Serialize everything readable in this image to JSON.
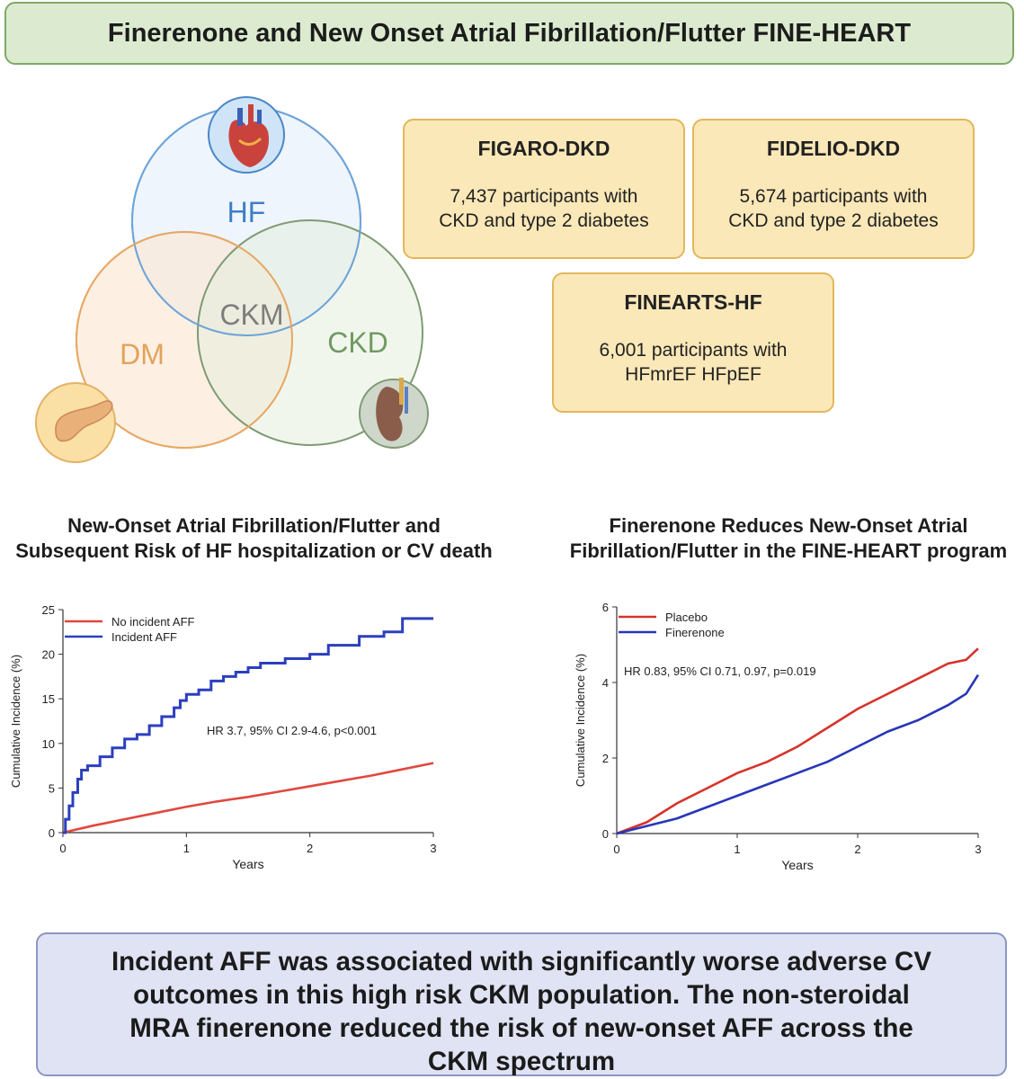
{
  "title": "Finerenone and New Onset Atrial Fibrillation/Flutter FINE-HEART",
  "venn": {
    "labels": {
      "hf": "HF",
      "dm": "DM",
      "ckd": "CKD",
      "ckm": "CKM"
    },
    "colors": {
      "hf": "#3d7fc4",
      "dm": "#e3a25a",
      "ckd": "#6f9a62",
      "ckm": "#7d7d7d"
    },
    "icons": {
      "hf": "heart-icon",
      "dm": "pancreas-icon",
      "ckd": "kidney-icon"
    }
  },
  "trials": [
    {
      "name": "FIGARO-DKD",
      "line1": "7,437 participants with",
      "line2": "CKD and type 2 diabetes"
    },
    {
      "name": "FIDELIO-DKD",
      "line1": "5,674 participants with",
      "line2": "CKD and type 2 diabetes"
    },
    {
      "name": "FINEARTS-HF",
      "line1": "6,001 participants with",
      "line2": "HFmrEF HFpEF"
    }
  ],
  "chart1_title": {
    "line1": "New-Onset Atrial Fibrillation/Flutter and",
    "line2": "Subsequent Risk of HF hospitalization or CV death"
  },
  "chart2_title": {
    "line1": "Finerenone Reduces New-Onset Atrial",
    "line2": "Fibrillation/Flutter in the FINE-HEART program"
  },
  "chart_data": [
    {
      "type": "line",
      "title": "New-Onset Atrial Fibrillation/Flutter and Subsequent Risk of HF hospitalization or CV death",
      "xlabel": "Years",
      "ylabel": "Cumulative Incidence (%)",
      "xlim": [
        0,
        3
      ],
      "ylim": [
        0,
        25
      ],
      "xticks": [
        0,
        1,
        2,
        3
      ],
      "yticks": [
        0,
        5,
        10,
        15,
        20,
        25
      ],
      "legend_position": "top-left",
      "annotation": "HR 3.7, 95% CI 2.9-4.6, p<0.001",
      "series": [
        {
          "name": "No incident AFF",
          "color": "#e0483e",
          "x": [
            0,
            0.25,
            0.5,
            0.75,
            1.0,
            1.25,
            1.5,
            1.75,
            2.0,
            2.25,
            2.5,
            2.75,
            3.0
          ],
          "y": [
            0,
            0.8,
            1.5,
            2.2,
            2.9,
            3.5,
            4.0,
            4.6,
            5.2,
            5.8,
            6.4,
            7.1,
            7.8
          ]
        },
        {
          "name": "Incident AFF",
          "color": "#2b3fbf",
          "step": true,
          "x": [
            0,
            0.02,
            0.05,
            0.08,
            0.12,
            0.15,
            0.2,
            0.3,
            0.4,
            0.5,
            0.6,
            0.7,
            0.8,
            0.9,
            0.95,
            1.0,
            1.1,
            1.2,
            1.3,
            1.4,
            1.5,
            1.6,
            1.8,
            2.0,
            2.15,
            2.4,
            2.6,
            2.75,
            3.0
          ],
          "y": [
            0,
            1.5,
            3.0,
            4.5,
            6.0,
            7.0,
            7.5,
            8.5,
            9.5,
            10.5,
            11.0,
            12.0,
            13.0,
            14.0,
            14.8,
            15.5,
            16.0,
            17.0,
            17.5,
            18.0,
            18.5,
            19.0,
            19.5,
            20.0,
            21.0,
            22.0,
            22.5,
            24.0,
            24.0
          ]
        }
      ]
    },
    {
      "type": "line",
      "title": "Finerenone Reduces New-Onset Atrial Fibrillation/Flutter in the FINE-HEART program",
      "xlabel": "Years",
      "ylabel": "Cumulative Incidence (%)",
      "xlim": [
        0,
        3
      ],
      "ylim": [
        0,
        6
      ],
      "xticks": [
        0,
        1,
        2,
        3
      ],
      "yticks": [
        0,
        2,
        4,
        6
      ],
      "legend_position": "top-left",
      "annotation": "HR 0.83, 95% CI 0.71, 0.97, p=0.019",
      "series": [
        {
          "name": "Placebo",
          "color": "#d6332b",
          "x": [
            0,
            0.25,
            0.5,
            0.75,
            1.0,
            1.25,
            1.5,
            1.75,
            2.0,
            2.25,
            2.5,
            2.75,
            2.9,
            3.0
          ],
          "y": [
            0,
            0.3,
            0.8,
            1.2,
            1.6,
            1.9,
            2.3,
            2.8,
            3.3,
            3.7,
            4.1,
            4.5,
            4.6,
            4.9
          ]
        },
        {
          "name": "Finerenone",
          "color": "#2736b8",
          "x": [
            0,
            0.25,
            0.5,
            0.75,
            1.0,
            1.25,
            1.5,
            1.75,
            2.0,
            2.25,
            2.5,
            2.75,
            2.9,
            3.0
          ],
          "y": [
            0,
            0.2,
            0.4,
            0.7,
            1.0,
            1.3,
            1.6,
            1.9,
            2.3,
            2.7,
            3.0,
            3.4,
            3.7,
            4.2
          ]
        }
      ]
    }
  ],
  "conclusion": {
    "line1": "Incident AFF was associated with significantly worse adverse CV",
    "line2": "outcomes in this high risk CKM population. The non-steroidal",
    "line3": "MRA finerenone reduced the risk of new-onset AFF across the",
    "line4": "CKM spectrum"
  }
}
